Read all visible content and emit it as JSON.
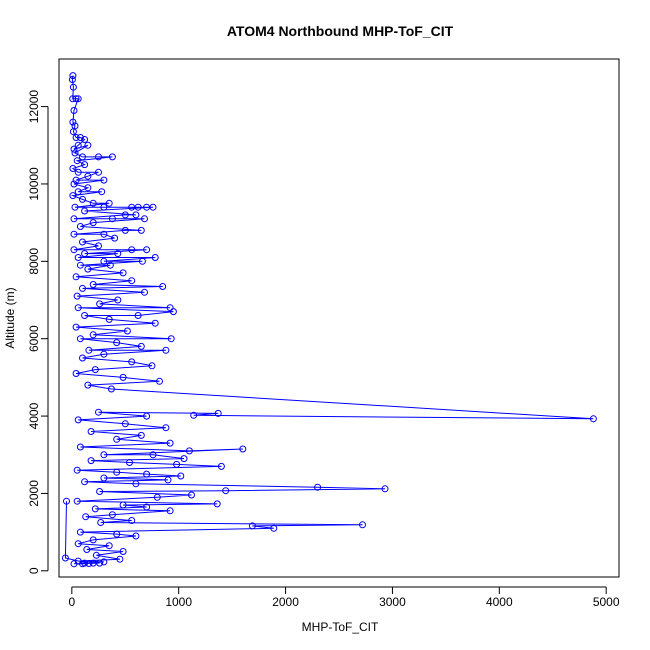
{
  "chart_data": {
    "type": "scatter",
    "title": "ATOM4 Northbound MHP-ToF_CIT",
    "xlabel": "MHP-ToF_CIT",
    "ylabel": "Altitude (m)",
    "xlim": [
      -120,
      5120
    ],
    "ylim": [
      -160,
      13230
    ],
    "x_ticks": [
      0,
      1000,
      2000,
      3000,
      4000,
      5000
    ],
    "y_ticks": [
      0,
      2000,
      4000,
      6000,
      8000,
      10000,
      12000
    ],
    "color": "#0000ff",
    "points_connected": true,
    "series": [
      {
        "values": [
          [
            10,
            12800
          ],
          [
            5,
            12700
          ],
          [
            15,
            12500
          ],
          [
            8,
            12200
          ],
          [
            40,
            12200
          ],
          [
            60,
            12200
          ],
          [
            20,
            11900
          ],
          [
            10,
            11600
          ],
          [
            30,
            11500
          ],
          [
            15,
            11350
          ],
          [
            40,
            11200
          ],
          [
            80,
            11200
          ],
          [
            120,
            11150
          ],
          [
            60,
            11000
          ],
          [
            20,
            10900
          ],
          [
            150,
            11000
          ],
          [
            30,
            10800
          ],
          [
            100,
            10700
          ],
          [
            250,
            10700
          ],
          [
            380,
            10700
          ],
          [
            50,
            10600
          ],
          [
            120,
            10500
          ],
          [
            10,
            10400
          ],
          [
            60,
            10300
          ],
          [
            250,
            10300
          ],
          [
            150,
            10200
          ],
          [
            40,
            10100
          ],
          [
            300,
            10100
          ],
          [
            20,
            10000
          ],
          [
            150,
            9900
          ],
          [
            60,
            9800
          ],
          [
            280,
            9800
          ],
          [
            10,
            9700
          ],
          [
            100,
            9600
          ],
          [
            200,
            9500
          ],
          [
            350,
            9500
          ],
          [
            30,
            9400
          ],
          [
            300,
            9400
          ],
          [
            560,
            9400
          ],
          [
            620,
            9400
          ],
          [
            700,
            9400
          ],
          [
            760,
            9400
          ],
          [
            120,
            9300
          ],
          [
            600,
            9200
          ],
          [
            500,
            9200
          ],
          [
            20,
            9100
          ],
          [
            380,
            9100
          ],
          [
            680,
            9100
          ],
          [
            200,
            9000
          ],
          [
            80,
            8900
          ],
          [
            650,
            8800
          ],
          [
            500,
            8800
          ],
          [
            20,
            8700
          ],
          [
            300,
            8700
          ],
          [
            400,
            8600
          ],
          [
            100,
            8500
          ],
          [
            250,
            8400
          ],
          [
            20,
            8300
          ],
          [
            560,
            8300
          ],
          [
            700,
            8300
          ],
          [
            120,
            8200
          ],
          [
            430,
            8200
          ],
          [
            60,
            8100
          ],
          [
            780,
            8100
          ],
          [
            300,
            8000
          ],
          [
            660,
            8000
          ],
          [
            80,
            7900
          ],
          [
            360,
            7900
          ],
          [
            150,
            7800
          ],
          [
            480,
            7700
          ],
          [
            40,
            7600
          ],
          [
            560,
            7500
          ],
          [
            200,
            7400
          ],
          [
            850,
            7350
          ],
          [
            100,
            7300
          ],
          [
            680,
            7200
          ],
          [
            50,
            7100
          ],
          [
            430,
            7000
          ],
          [
            260,
            6900
          ],
          [
            920,
            6800
          ],
          [
            60,
            6800
          ],
          [
            950,
            6700
          ],
          [
            620,
            6600
          ],
          [
            120,
            6600
          ],
          [
            350,
            6500
          ],
          [
            780,
            6400
          ],
          [
            40,
            6300
          ],
          [
            520,
            6200
          ],
          [
            200,
            6100
          ],
          [
            930,
            6000
          ],
          [
            80,
            6000
          ],
          [
            420,
            5900
          ],
          [
            650,
            5800
          ],
          [
            160,
            5700
          ],
          [
            880,
            5700
          ],
          [
            300,
            5600
          ],
          [
            100,
            5500
          ],
          [
            560,
            5400
          ],
          [
            750,
            5300
          ],
          [
            220,
            5200
          ],
          [
            40,
            5100
          ],
          [
            480,
            5000
          ],
          [
            820,
            4900
          ],
          [
            150,
            4800
          ],
          [
            370,
            4700
          ],
          [
            4880,
            3930
          ],
          [
            1140,
            4020
          ],
          [
            1370,
            4070
          ],
          [
            250,
            4100
          ],
          [
            700,
            4000
          ],
          [
            60,
            3900
          ],
          [
            500,
            3800
          ],
          [
            880,
            3700
          ],
          [
            180,
            3600
          ],
          [
            650,
            3500
          ],
          [
            420,
            3400
          ],
          [
            920,
            3300
          ],
          [
            80,
            3200
          ],
          [
            1100,
            3100
          ],
          [
            1600,
            3150
          ],
          [
            300,
            3000
          ],
          [
            760,
            3000
          ],
          [
            1050,
            2900
          ],
          [
            180,
            2850
          ],
          [
            540,
            2800
          ],
          [
            980,
            2750
          ],
          [
            1400,
            2700
          ],
          [
            50,
            2600
          ],
          [
            420,
            2550
          ],
          [
            700,
            2500
          ],
          [
            1020,
            2450
          ],
          [
            300,
            2400
          ],
          [
            900,
            2350
          ],
          [
            120,
            2300
          ],
          [
            600,
            2250
          ],
          [
            2300,
            2160
          ],
          [
            2930,
            2120
          ],
          [
            1440,
            2070
          ],
          [
            260,
            2050
          ],
          [
            1120,
            1960
          ],
          [
            800,
            1900
          ],
          [
            50,
            1800
          ],
          [
            1360,
            1730
          ],
          [
            480,
            1700
          ],
          [
            700,
            1650
          ],
          [
            220,
            1600
          ],
          [
            920,
            1550
          ],
          [
            380,
            1450
          ],
          [
            130,
            1400
          ],
          [
            560,
            1300
          ],
          [
            270,
            1250
          ],
          [
            2720,
            1190
          ],
          [
            1690,
            1160
          ],
          [
            1890,
            1100
          ],
          [
            80,
            1000
          ],
          [
            420,
            950
          ],
          [
            600,
            900
          ],
          [
            200,
            800
          ],
          [
            60,
            700
          ],
          [
            350,
            650
          ],
          [
            140,
            550
          ],
          [
            480,
            500
          ],
          [
            230,
            400
          ],
          [
            450,
            300
          ],
          [
            60,
            250
          ],
          [
            300,
            230
          ],
          [
            120,
            200
          ],
          [
            200,
            200
          ],
          [
            260,
            200
          ],
          [
            20,
            180
          ],
          [
            100,
            180
          ],
          [
            160,
            190
          ],
          [
            -60,
            330
          ],
          [
            -50,
            1800
          ]
        ]
      }
    ]
  }
}
